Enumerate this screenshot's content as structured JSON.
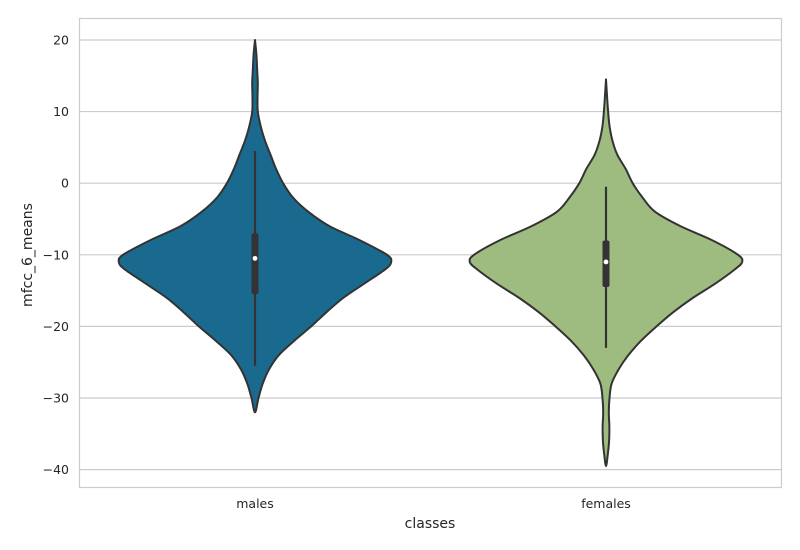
{
  "chart_data": {
    "type": "violin",
    "title": "",
    "xlabel": "classes",
    "ylabel": "mfcc_6_means",
    "categories": [
      "males",
      "females"
    ],
    "ylim": [
      -42.5,
      23
    ],
    "yticks": [
      20,
      10,
      0,
      -10,
      -20,
      -30,
      -40
    ],
    "ytick_labels": [
      "20",
      "10",
      "0",
      "−10",
      "−20",
      "−30",
      "−40"
    ],
    "grid": true,
    "legend": "none",
    "colors": {
      "males": "#1a6a90",
      "females": "#9fbc80",
      "edge": "#333333",
      "grid": "#cccccc",
      "frame": "#cccccc"
    },
    "violins": [
      {
        "category": "males",
        "color": "#1a6a90",
        "min": -32,
        "max": 20,
        "q1": -15.5,
        "median": -10.5,
        "q3": -7,
        "whisker_low": -25.5,
        "whisker_high": 4.5,
        "density": [
          [
            20,
            0.0
          ],
          [
            18,
            0.01
          ],
          [
            16,
            0.015
          ],
          [
            14,
            0.02
          ],
          [
            12,
            0.018
          ],
          [
            10,
            0.02
          ],
          [
            8,
            0.04
          ],
          [
            6,
            0.07
          ],
          [
            4,
            0.11
          ],
          [
            2,
            0.15
          ],
          [
            0,
            0.2
          ],
          [
            -2,
            0.27
          ],
          [
            -4,
            0.38
          ],
          [
            -6,
            0.53
          ],
          [
            -8,
            0.75
          ],
          [
            -10,
            0.94
          ],
          [
            -11,
            0.97
          ],
          [
            -12,
            0.93
          ],
          [
            -14,
            0.78
          ],
          [
            -16,
            0.63
          ],
          [
            -18,
            0.51
          ],
          [
            -20,
            0.4
          ],
          [
            -22,
            0.28
          ],
          [
            -24,
            0.17
          ],
          [
            -26,
            0.1
          ],
          [
            -28,
            0.055
          ],
          [
            -30,
            0.025
          ],
          [
            -32,
            0.0
          ]
        ]
      },
      {
        "category": "females",
        "color": "#9fbc80",
        "min": -39.5,
        "max": 14.5,
        "q1": -14.5,
        "median": -11,
        "q3": -8,
        "whisker_low": -23,
        "whisker_high": -0.5,
        "density": [
          [
            14.5,
            0.0
          ],
          [
            12,
            0.008
          ],
          [
            10,
            0.015
          ],
          [
            8,
            0.025
          ],
          [
            6,
            0.045
          ],
          [
            4,
            0.08
          ],
          [
            2,
            0.14
          ],
          [
            0,
            0.19
          ],
          [
            -2,
            0.26
          ],
          [
            -4,
            0.35
          ],
          [
            -6,
            0.53
          ],
          [
            -8,
            0.76
          ],
          [
            -10,
            0.94
          ],
          [
            -11,
            0.97
          ],
          [
            -12,
            0.92
          ],
          [
            -14,
            0.78
          ],
          [
            -16,
            0.62
          ],
          [
            -18,
            0.48
          ],
          [
            -20,
            0.36
          ],
          [
            -22,
            0.25
          ],
          [
            -24,
            0.16
          ],
          [
            -26,
            0.09
          ],
          [
            -28,
            0.04
          ],
          [
            -30,
            0.025
          ],
          [
            -32,
            0.02
          ],
          [
            -34,
            0.024
          ],
          [
            -36,
            0.022
          ],
          [
            -38,
            0.012
          ],
          [
            -39.5,
            0.0
          ]
        ]
      }
    ]
  }
}
